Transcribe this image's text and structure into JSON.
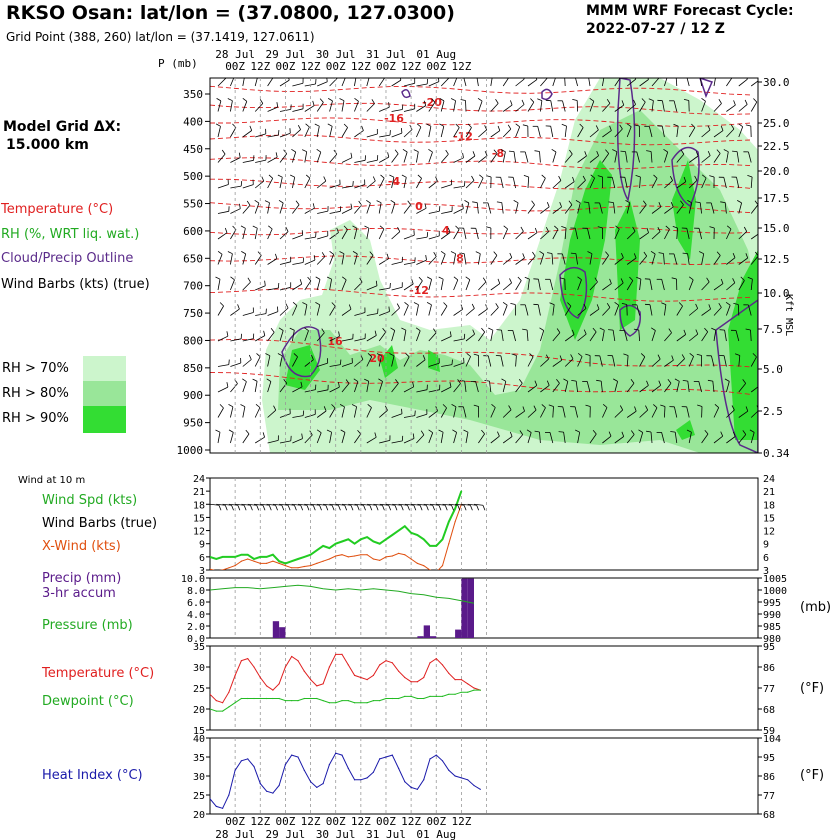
{
  "header": {
    "station": "RKSO Osan:  lat/lon = (37.0800, 127.0300)",
    "grid_point": "Grid Point (388, 260) lat/lon = (37.1419, 127.0611)",
    "model": "MMM WRF Forecast Cycle:",
    "cycle": "2022-07-27 / 12  Z",
    "grid_dx_label": "Model Grid ΔX:",
    "grid_dx_value": "15.000 km"
  },
  "legend": {
    "temperature": "Temperature (°C)",
    "rh": "RH (%, WRT liq. wat.)",
    "cloud": "Cloud/Precip Outline",
    "barbs": "Wind Barbs (kts) (true)",
    "rh70": "RH > 70%",
    "rh80": "RH > 80%",
    "rh90": "RH > 90%"
  },
  "colors": {
    "temperature": "#e02020",
    "rh": "#22aa22",
    "cloud": "#5a2a8a",
    "wind_speed": "#22cc22",
    "xwind": "#e05010",
    "precip": "#5a1a8a",
    "pressure": "#22aa22",
    "dewpoint": "#22bb22",
    "heat_index": "#1a1aaa",
    "rh70": "#ccf5cc",
    "rh80": "#99e699",
    "rh90": "#33dd33"
  },
  "time_axis": {
    "dates": [
      "28 Jul",
      "29 Jul",
      "30 Jul",
      "31 Jul",
      "01 Aug"
    ],
    "hours": [
      "00Z",
      "12Z",
      "00Z",
      "12Z",
      "00Z",
      "12Z",
      "00Z",
      "12Z",
      "00Z",
      "12Z"
    ]
  },
  "sounding": {
    "p_label": "P (mb)",
    "pressure_levels": [
      "350",
      "400",
      "450",
      "500",
      "550",
      "600",
      "650",
      "700",
      "750",
      "800",
      "850",
      "900",
      "950",
      "1000"
    ],
    "height_unit": "Kft MSL",
    "height_ticks": [
      "30.0",
      "25.0",
      "22.5",
      "20.0",
      "17.5",
      "15.0",
      "12.5",
      "10.0",
      "7.5",
      "5.0",
      "2.5",
      "0.34"
    ],
    "temp_labels": [
      "-20",
      "-16",
      "-12",
      "-8",
      "-4",
      "0",
      "4",
      "8",
      "-12",
      "16",
      "20"
    ]
  },
  "panels": {
    "wind": {
      "title": "Wind at 10 m",
      "speed_label": "Wind Spd (kts)",
      "barbs_label": "Wind Barbs (true)",
      "xwind_label": "X-Wind (kts)",
      "yticks": [
        "24",
        "21",
        "18",
        "15",
        "12",
        "9",
        "6",
        "3"
      ]
    },
    "precip": {
      "precip_label": "Precip (mm)",
      "accum_label": "3-hr accum",
      "pressure_label": "Pressure (mb)",
      "unit": "(mb)",
      "left_ticks": [
        "10.0",
        "8.0",
        "6.0",
        "4.0",
        "2.0",
        "0.0"
      ],
      "right_ticks": [
        "1005",
        "1000",
        "995",
        "990",
        "985",
        "980"
      ]
    },
    "temp": {
      "temp_label": "Temperature (°C)",
      "dew_label": "Dewpoint (°C)",
      "unit": "(°F)",
      "left_ticks": [
        "35",
        "30",
        "25",
        "20",
        "15"
      ],
      "right_ticks": [
        "95",
        "86",
        "77",
        "68",
        "59"
      ]
    },
    "heat": {
      "heat_label": "Heat Index (°C)",
      "unit": "(°F)",
      "left_ticks": [
        "40",
        "35",
        "30",
        "25",
        "20"
      ],
      "right_ticks": [
        "104",
        "95",
        "86",
        "77",
        "68"
      ]
    }
  },
  "chart_data": [
    {
      "type": "line",
      "title": "Wind at 10 m",
      "x_hours_from_start": [
        0,
        3,
        6,
        9,
        12,
        15,
        18,
        21,
        24,
        27,
        30,
        33,
        36,
        39,
        42,
        45,
        48,
        51,
        54,
        57,
        60,
        63,
        66,
        69,
        72,
        75,
        78,
        81,
        84,
        87,
        90,
        93,
        96,
        99,
        102,
        105,
        108,
        111,
        114,
        117,
        120
      ],
      "series": [
        {
          "name": "Wind Spd (kts)",
          "values": [
            6,
            5.5,
            6,
            6,
            6,
            6.5,
            6.5,
            5.5,
            6,
            6,
            6.5,
            5,
            4.5,
            5,
            5.5,
            6,
            6.5,
            7.5,
            8.5,
            8,
            9,
            9.5,
            10,
            9,
            10,
            10.5,
            9.5,
            9,
            10,
            11,
            12,
            13,
            11.5,
            11,
            10,
            8.5,
            8.5,
            10,
            14,
            17,
            21
          ]
        },
        {
          "name": "X-Wind (kts)",
          "values": [
            3.2,
            2.8,
            3,
            3.5,
            4,
            5,
            5.5,
            5,
            4.5,
            4.5,
            5,
            4.5,
            4,
            3.5,
            3.5,
            3.8,
            4,
            4.5,
            5,
            5.5,
            6.2,
            6.5,
            6,
            6.2,
            6.5,
            6.5,
            5.5,
            5.2,
            6,
            6.2,
            6.8,
            6.5,
            5.5,
            4.5,
            4,
            3,
            2.5,
            4,
            9,
            14,
            18
          ]
        }
      ],
      "ylim": [
        3,
        24
      ]
    },
    {
      "type": "bar",
      "title": "Precip (mm) 3-hr accum / Pressure (mb)",
      "x_hours_from_start": [
        33,
        36,
        102,
        105,
        108,
        120,
        123,
        126
      ],
      "series": [
        {
          "name": "Precip (mm)",
          "values": [
            2.8,
            1.8,
            0.3,
            2.1,
            0.3,
            1.4,
            9.9,
            9.9
          ]
        },
        {
          "name": "Pressure (mb)",
          "x_hours_from_start": [
            0,
            6,
            12,
            18,
            24,
            30,
            36,
            42,
            48,
            54,
            60,
            66,
            72,
            78,
            84,
            90,
            96,
            102,
            108,
            114,
            120,
            126
          ],
          "values": [
            1000,
            1000.5,
            1001,
            1001,
            1000.5,
            1001,
            1001.5,
            1002,
            1001.5,
            1000.5,
            1000,
            1000.5,
            1000,
            1000.5,
            1000,
            999.5,
            998.5,
            998,
            997,
            996.5,
            995.5,
            994.5
          ]
        }
      ],
      "ylim_left": [
        0,
        10
      ],
      "ylim_right": [
        980,
        1005
      ]
    },
    {
      "type": "line",
      "title": "Temperature / Dewpoint",
      "x_hours_from_start": [
        0,
        3,
        6,
        9,
        12,
        15,
        18,
        21,
        24,
        27,
        30,
        33,
        36,
        39,
        42,
        45,
        48,
        51,
        54,
        57,
        60,
        63,
        66,
        69,
        72,
        75,
        78,
        81,
        84,
        87,
        90,
        93,
        96,
        99,
        102,
        105,
        108,
        111,
        114,
        117,
        120,
        123,
        126,
        129
      ],
      "series": [
        {
          "name": "Temperature (°C)",
          "values": [
            23.5,
            22,
            21.5,
            24,
            28,
            31.5,
            32,
            30,
            27.5,
            25.5,
            24.5,
            26,
            30,
            32.5,
            31.5,
            29,
            27,
            25.5,
            26,
            30,
            33,
            33,
            30.5,
            28,
            27.5,
            27,
            28,
            30.5,
            31.5,
            31,
            29,
            27.5,
            26.5,
            26.5,
            27.5,
            31,
            32,
            30.5,
            28.5,
            27,
            27,
            26,
            25,
            24.5
          ]
        },
        {
          "name": "Dewpoint (°C)",
          "values": [
            20,
            19.5,
            19.5,
            20.5,
            21.5,
            22.5,
            22.5,
            22.5,
            22.5,
            22.5,
            22.5,
            22.5,
            22,
            22,
            22,
            22.5,
            22.5,
            22.5,
            22,
            21.5,
            21.5,
            22,
            22,
            21.5,
            21.5,
            21.5,
            22,
            22,
            22.5,
            22.5,
            22.5,
            23,
            23,
            22.5,
            22.5,
            23,
            23,
            23,
            23.5,
            23.5,
            24,
            24,
            24.5,
            24.5
          ]
        }
      ],
      "ylim": [
        15,
        35
      ]
    },
    {
      "type": "line",
      "title": "Heat Index",
      "x_hours_from_start": [
        0,
        3,
        6,
        9,
        12,
        15,
        18,
        21,
        24,
        27,
        30,
        33,
        36,
        39,
        42,
        45,
        48,
        51,
        54,
        57,
        60,
        63,
        66,
        69,
        72,
        75,
        78,
        81,
        84,
        87,
        90,
        93,
        96,
        99,
        102,
        105,
        108,
        111,
        114,
        117,
        120,
        123,
        126,
        129
      ],
      "series": [
        {
          "name": "Heat Index (°C)",
          "values": [
            24,
            22,
            21.5,
            25,
            31.5,
            34,
            34.5,
            32.5,
            28,
            26,
            25.5,
            27.5,
            33,
            35.5,
            35,
            31.5,
            28.5,
            27,
            28,
            33,
            36,
            35.5,
            32,
            29,
            29,
            29.5,
            31,
            34.5,
            35,
            35.5,
            32,
            28.5,
            27,
            26.5,
            29,
            34.5,
            35.5,
            34,
            31.5,
            30,
            29.5,
            29,
            27.5,
            26.5
          ]
        }
      ],
      "ylim": [
        20,
        40
      ]
    }
  ]
}
